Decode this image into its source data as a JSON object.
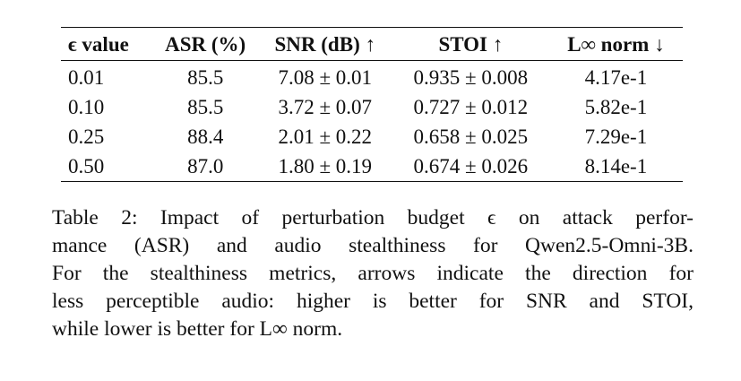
{
  "table": {
    "headers": [
      "ϵ value",
      "ASR (%)",
      "SNR (dB) ↑",
      "STOI ↑",
      "L∞ norm ↓"
    ],
    "rows": [
      [
        "0.01",
        "85.5",
        "7.08 ± 0.01",
        "0.935 ± 0.008",
        "4.17e-1"
      ],
      [
        "0.10",
        "85.5",
        "3.72 ± 0.07",
        "0.727 ± 0.012",
        "5.82e-1"
      ],
      [
        "0.25",
        "88.4",
        "2.01 ± 0.22",
        "0.658 ± 0.025",
        "7.29e-1"
      ],
      [
        "0.50",
        "87.0",
        "1.80 ± 0.19",
        "0.674 ± 0.026",
        "8.14e-1"
      ]
    ]
  },
  "caption": {
    "lines": [
      "Table 2: Impact of perturbation budget ϵ on attack perfor-",
      "mance (ASR) and audio stealthiness for Qwen2.5-Omni-3B.",
      "For the stealthiness metrics, arrows indicate the direction for",
      "less perceptible audio: higher is better for SNR and STOI,",
      "while lower is better for L∞ norm."
    ]
  }
}
